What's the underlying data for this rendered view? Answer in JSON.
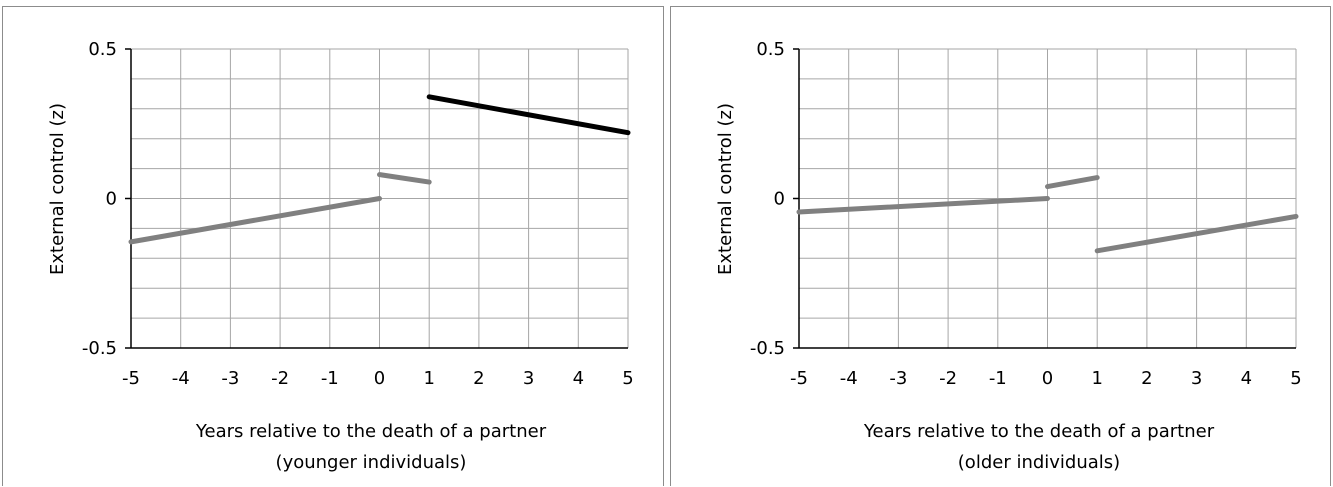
{
  "chart_data": [
    {
      "type": "line",
      "title": "",
      "xlabel": "Years relative to the death of a partner",
      "xlabel_sub": "(younger individuals)",
      "ylabel": "External control (z)",
      "xlim": [
        -5,
        5
      ],
      "ylim": [
        -0.5,
        0.5
      ],
      "x_ticks": [
        "-5",
        "-4",
        "-3",
        "-2",
        "-1",
        "0",
        "1",
        "2",
        "3",
        "4",
        "5"
      ],
      "y_ticks": [
        "0.5",
        "0",
        "-0.5"
      ],
      "grid": true,
      "series": [
        {
          "color": "#808080",
          "x": [
            -5,
            0
          ],
          "y": [
            -0.145,
            0.0
          ]
        },
        {
          "color": "#808080",
          "x": [
            0,
            1
          ],
          "y": [
            0.08,
            0.055
          ]
        },
        {
          "color": "#000000",
          "x": [
            1,
            5
          ],
          "y": [
            0.34,
            0.22
          ]
        }
      ]
    },
    {
      "type": "line",
      "title": "",
      "xlabel": "Years relative to the death of a partner",
      "xlabel_sub": "(older individuals)",
      "ylabel": "External control (z)",
      "xlim": [
        -5,
        5
      ],
      "ylim": [
        -0.5,
        0.5
      ],
      "x_ticks": [
        "-5",
        "-4",
        "-3",
        "-2",
        "-1",
        "0",
        "1",
        "2",
        "3",
        "4",
        "5"
      ],
      "y_ticks": [
        "0.5",
        "0",
        "-0.5"
      ],
      "grid": true,
      "series": [
        {
          "color": "#808080",
          "x": [
            -5,
            0
          ],
          "y": [
            -0.045,
            0.0
          ]
        },
        {
          "color": "#808080",
          "x": [
            0,
            1
          ],
          "y": [
            0.04,
            0.07
          ]
        },
        {
          "color": "#808080",
          "x": [
            1,
            5
          ],
          "y": [
            -0.175,
            -0.06
          ]
        }
      ]
    }
  ]
}
